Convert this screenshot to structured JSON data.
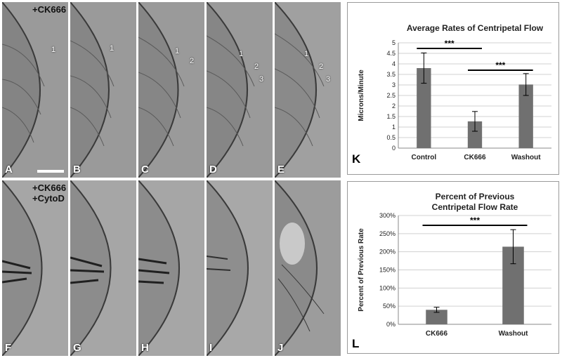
{
  "micrographs": {
    "treatment_top": "+CK666",
    "treatment_bottom_1": "+CK666",
    "treatment_bottom_2": "+CytoD",
    "top_row": [
      {
        "label": "A",
        "markers": [
          "1"
        ]
      },
      {
        "label": "B",
        "markers": [
          "1"
        ]
      },
      {
        "label": "C",
        "markers": [
          "1",
          "2"
        ]
      },
      {
        "label": "D",
        "markers": [
          "1",
          "2",
          "3"
        ]
      },
      {
        "label": "E",
        "markers": [
          "1",
          "2",
          "3"
        ]
      }
    ],
    "bottom_row": [
      {
        "label": "F"
      },
      {
        "label": "G"
      },
      {
        "label": "H"
      },
      {
        "label": "I"
      },
      {
        "label": "J"
      }
    ]
  },
  "chart_data": [
    {
      "type": "bar",
      "panel_label": "K",
      "title": "Average Rates of Centripetal Flow",
      "ylabel": "Microns/Minute",
      "categories": [
        "Control",
        "CK666",
        "Washout"
      ],
      "values": [
        3.8,
        1.27,
        3.02
      ],
      "errors": [
        0.72,
        0.47,
        0.52
      ],
      "ylim": [
        0,
        5
      ],
      "yticks": [
        "0",
        "0.5",
        "1",
        "1.5",
        "2",
        "2.5",
        "3",
        "3.5",
        "4",
        "4.5",
        "5"
      ],
      "significance": [
        {
          "from": "Control",
          "to": "CK666",
          "label": "***"
        },
        {
          "from": "CK666",
          "to": "Washout",
          "label": "***"
        }
      ],
      "bar_color": "#707070"
    },
    {
      "type": "bar",
      "panel_label": "L",
      "title_line1": "Percent of Previous",
      "title_line2": "Centripetal Flow Rate",
      "ylabel": "Percent of Previous Rate",
      "categories": [
        "CK666",
        "Washout"
      ],
      "values": [
        40,
        214
      ],
      "errors": [
        7,
        47
      ],
      "ylim": [
        0,
        300
      ],
      "yticks": [
        "0%",
        "50%",
        "100%",
        "150%",
        "200%",
        "250%",
        "300%"
      ],
      "significance": [
        {
          "from": "CK666",
          "to": "Washout",
          "label": "***"
        }
      ],
      "bar_color": "#707070"
    }
  ]
}
